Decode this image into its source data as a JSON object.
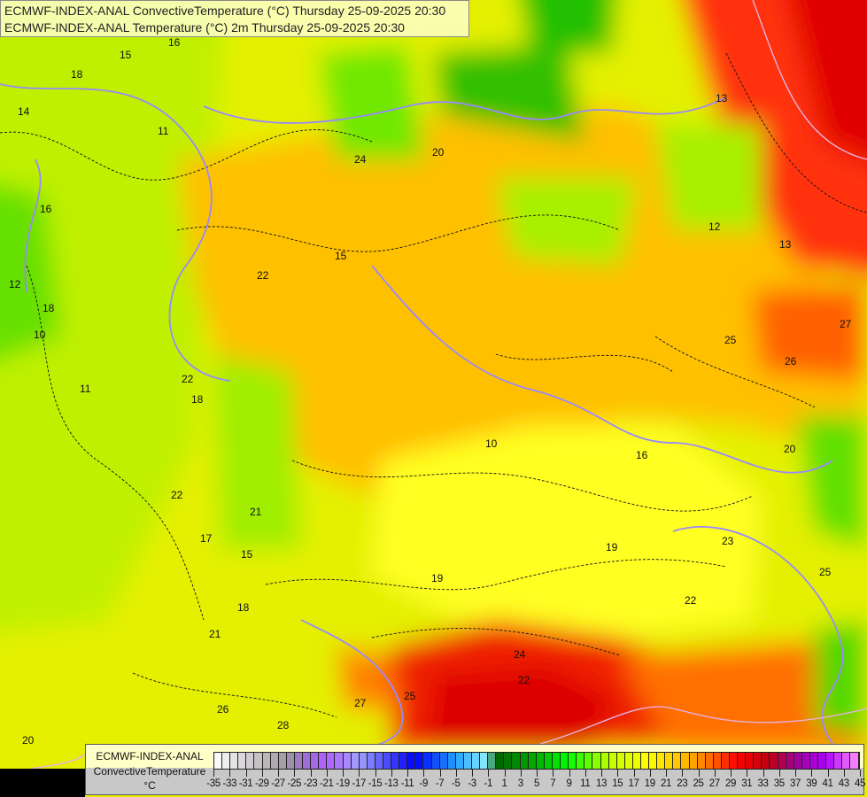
{
  "header": {
    "line1": "ECMWF-INDEX-ANAL ConvectiveTemperature (°C) Thursday 25-09-2025 20:30",
    "line2": "ECMWF-INDEX-ANAL Temperature (°C) 2m Thursday 25-09-2025 20:30"
  },
  "legend": {
    "model": "ECMWF-INDEX-ANAL",
    "parameter": "ConvectiveTemperature",
    "unit": "°C",
    "range": [
      -35,
      45
    ],
    "tick_labels": [
      "-35",
      "-33",
      "-31",
      "-29",
      "-27",
      "-25",
      "-23",
      "-21",
      "-19",
      "-17",
      "-15",
      "-13",
      "-11",
      "-9",
      "-7",
      "-5",
      "-3",
      "-1",
      "1",
      "3",
      "5",
      "7",
      "9",
      "11",
      "13",
      "15",
      "17",
      "19",
      "21",
      "23",
      "25",
      "27",
      "29",
      "31",
      "33",
      "35",
      "37",
      "39",
      "41",
      "43",
      "45"
    ],
    "color_stops": [
      {
        "value": -35,
        "color": "#ffffff"
      },
      {
        "value": -26,
        "color": "#a09aa0"
      },
      {
        "value": -24,
        "color": "#9a70d0"
      },
      {
        "value": -21,
        "color": "#b060ff"
      },
      {
        "value": -17,
        "color": "#a0a0ff"
      },
      {
        "value": -13,
        "color": "#4040ff"
      },
      {
        "value": -10,
        "color": "#0000ff"
      },
      {
        "value": -5,
        "color": "#20a0ff"
      },
      {
        "value": -1,
        "color": "#90f0ff"
      },
      {
        "value": 0,
        "color": "#006000"
      },
      {
        "value": 5,
        "color": "#00b000"
      },
      {
        "value": 9,
        "color": "#00ff00"
      },
      {
        "value": 14,
        "color": "#c0ff00"
      },
      {
        "value": 19,
        "color": "#ffff00"
      },
      {
        "value": 24,
        "color": "#ffb000"
      },
      {
        "value": 27,
        "color": "#ff6000"
      },
      {
        "value": 30,
        "color": "#ff0000"
      },
      {
        "value": 34,
        "color": "#c00010"
      },
      {
        "value": 37,
        "color": "#a00090"
      },
      {
        "value": 41,
        "color": "#b000ff"
      },
      {
        "value": 45,
        "color": "#ff90ff"
      }
    ]
  },
  "map": {
    "contour_labels": [
      "16",
      "18",
      "14",
      "11",
      "16",
      "12",
      "10",
      "11",
      "15",
      "22",
      "18",
      "22",
      "21",
      "15",
      "17",
      "18",
      "21",
      "19",
      "19",
      "16",
      "20",
      "23",
      "22",
      "25",
      "26",
      "27",
      "22",
      "24",
      "25",
      "27",
      "28",
      "20",
      "26",
      "24",
      "20",
      "18",
      "13",
      "12",
      "13",
      "10",
      "25",
      "22",
      "15"
    ],
    "colors": {
      "border": "#9988ff",
      "coast": "#e8b0e0"
    }
  }
}
